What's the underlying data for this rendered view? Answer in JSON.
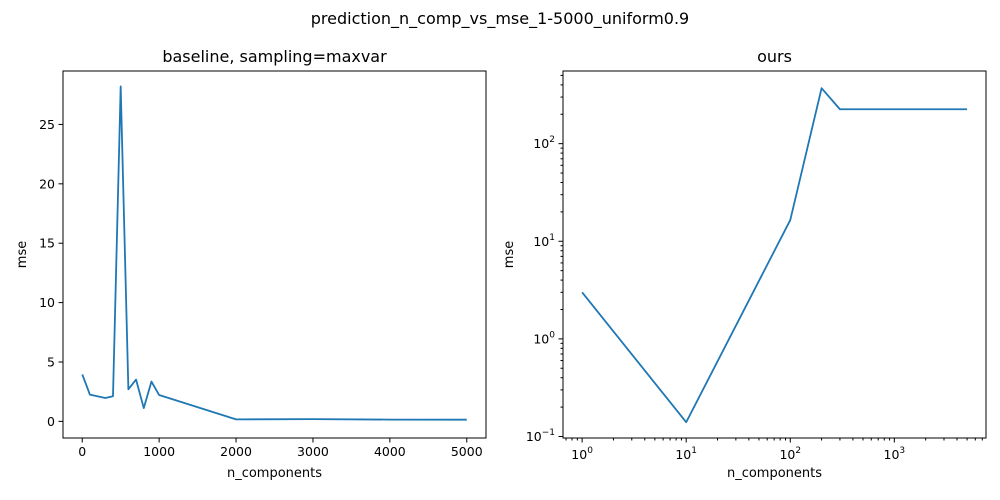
{
  "figure": {
    "suptitle": "prediction_n_comp_vs_mse_1-5000_uniform0.9"
  },
  "chart_data": [
    {
      "type": "line",
      "title": "baseline, sampling=maxvar",
      "xlabel": "n_components",
      "ylabel": "mse",
      "xscale": "linear",
      "yscale": "linear",
      "xlim": [
        -250,
        5250
      ],
      "ylim": [
        -1.4,
        29.5
      ],
      "xticks": [
        0,
        1000,
        2000,
        3000,
        4000,
        5000
      ],
      "xtick_labels": [
        "0",
        "1000",
        "2000",
        "3000",
        "4000",
        "5000"
      ],
      "yticks": [
        0,
        5,
        10,
        15,
        20,
        25
      ],
      "ytick_labels": [
        "0",
        "5",
        "10",
        "15",
        "20",
        "25"
      ],
      "grid": false,
      "series": [
        {
          "color": "#1f77b4",
          "x": [
            1,
            100,
            300,
            400,
            500,
            600,
            700,
            800,
            900,
            1000,
            2000,
            3000,
            4000,
            5000
          ],
          "y": [
            3.95,
            2.25,
            1.97,
            2.12,
            28.2,
            2.7,
            3.52,
            1.12,
            3.35,
            2.22,
            0.17,
            0.19,
            0.15,
            0.14
          ]
        }
      ]
    },
    {
      "type": "line",
      "title": "ours",
      "xlabel": "n_components",
      "ylabel": "mse",
      "xscale": "log",
      "yscale": "log",
      "xlim": [
        0.655,
        7600
      ],
      "ylim": [
        0.0965,
        555
      ],
      "xticks": [
        1,
        10,
        100,
        1000
      ],
      "xtick_labels": [
        {
          "base": "10",
          "exp": "0"
        },
        {
          "base": "10",
          "exp": "1"
        },
        {
          "base": "10",
          "exp": "2"
        },
        {
          "base": "10",
          "exp": "3"
        }
      ],
      "yticks": [
        0.1,
        1,
        10,
        100
      ],
      "ytick_labels": [
        {
          "base": "10",
          "exp": "−1"
        },
        {
          "base": "10",
          "exp": "0"
        },
        {
          "base": "10",
          "exp": "1"
        },
        {
          "base": "10",
          "exp": "2"
        }
      ],
      "grid": false,
      "series": [
        {
          "color": "#1f77b4",
          "x": [
            1,
            10,
            100,
            200,
            300,
            5000
          ],
          "y": [
            3.0,
            0.14,
            16.5,
            370,
            225,
            225
          ]
        }
      ]
    }
  ]
}
